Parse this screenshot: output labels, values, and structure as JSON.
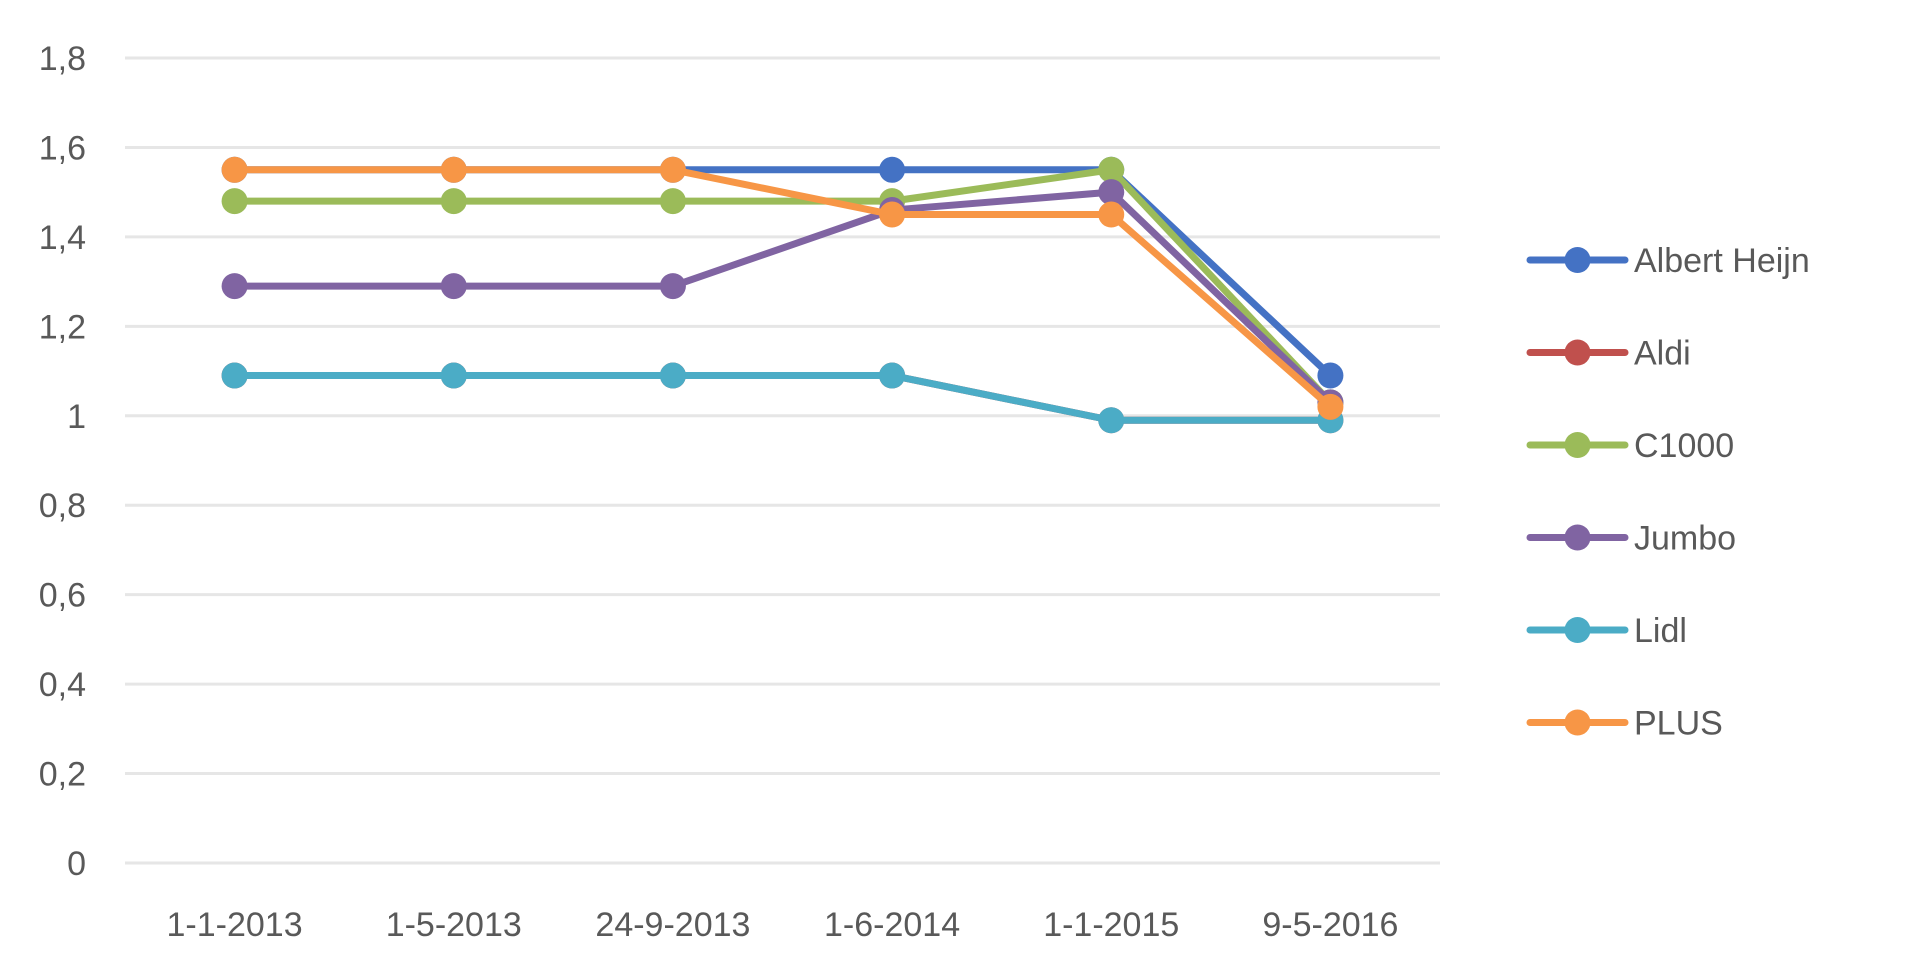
{
  "chart_data": {
    "type": "line",
    "categories": [
      "1-1-2013",
      "1-5-2013",
      "24-9-2013",
      "1-6-2014",
      "1-1-2015",
      "9-5-2016"
    ],
    "y_tick_labels": [
      "0",
      "0,2",
      "0,4",
      "0,6",
      "0,8",
      "1",
      "1,2",
      "1,4",
      "1,6",
      "1,8"
    ],
    "ylim": [
      0,
      1.8
    ],
    "y_step": 0.2,
    "grid": true,
    "legend_position": "right",
    "title": "",
    "xlabel": "",
    "ylabel": "",
    "series": [
      {
        "name": "Albert Heijn",
        "color": "#4472c4",
        "values": [
          1.55,
          1.55,
          1.55,
          1.55,
          1.55,
          1.09
        ]
      },
      {
        "name": "Aldi",
        "color": "#c0504d",
        "values": [
          1.09,
          1.09,
          1.09,
          1.09,
          0.99,
          0.99
        ]
      },
      {
        "name": "C1000",
        "color": "#9bbb59",
        "values": [
          1.48,
          1.48,
          1.48,
          1.48,
          1.55,
          1.03
        ]
      },
      {
        "name": "Jumbo",
        "color": "#8064a2",
        "values": [
          1.29,
          1.29,
          1.29,
          1.46,
          1.5,
          1.03
        ]
      },
      {
        "name": "Lidl",
        "color": "#4bacc6",
        "values": [
          1.09,
          1.09,
          1.09,
          1.09,
          0.99,
          0.99
        ]
      },
      {
        "name": "PLUS",
        "color": "#f79646",
        "values": [
          1.55,
          1.55,
          1.55,
          1.45,
          1.45,
          1.02
        ]
      }
    ]
  }
}
